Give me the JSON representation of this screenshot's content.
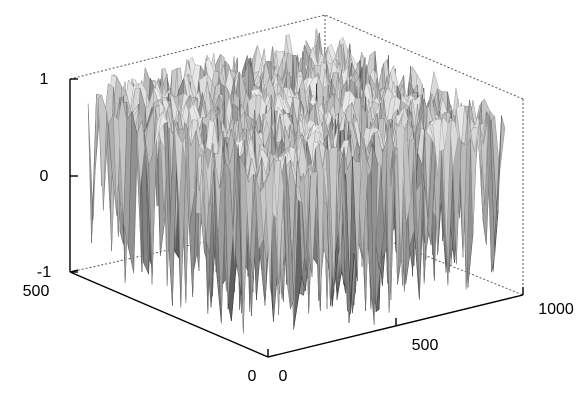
{
  "chart_data": {
    "type": "surface",
    "style": "3d-mesh-grayscale",
    "title": "",
    "xlabel": "",
    "ylabel": "",
    "zlabel": "",
    "x_ticks": [
      "0",
      "500",
      "1000"
    ],
    "y_ticks": [
      "0",
      "500"
    ],
    "z_ticks": [
      "-1",
      "0",
      "1"
    ],
    "xlim": [
      0,
      1000
    ],
    "ylim": [
      0,
      500
    ],
    "zlim": [
      -1,
      1
    ],
    "grid": false,
    "surface_description_values": {
      "z_min": -1,
      "z_max": 1
    },
    "colormap": "gray"
  }
}
